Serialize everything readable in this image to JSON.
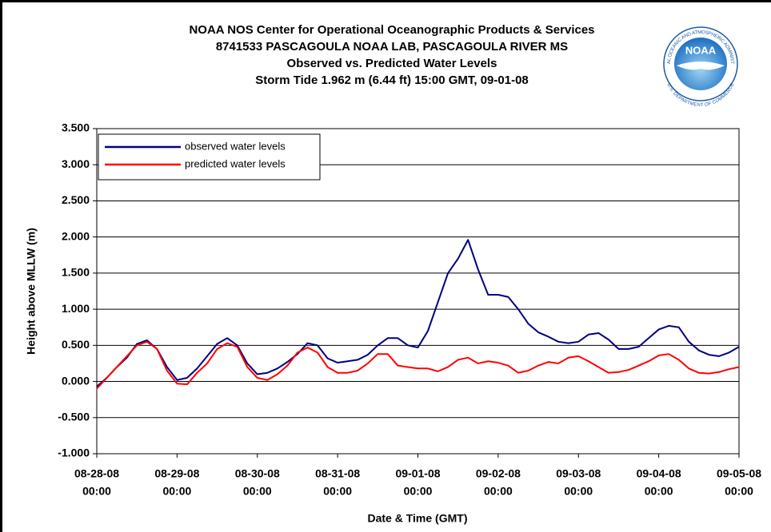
{
  "chart_data": {
    "type": "line",
    "title": [
      "NOAA NOS Center for Operational Oceanographic Products & Services",
      "8741533  PASCAGOULA NOAA LAB, PASCAGOULA RIVER MS",
      "Observed vs. Predicted Water Levels",
      "Storm Tide 1.962 m (6.44 ft) 15:00 GMT, 09-01-08"
    ],
    "logo": {
      "text": "NOAA",
      "ring_top": "NATIONAL OCEANIC AND ATMOSPHERIC ADMINISTRATION",
      "ring_bottom": "U.S. DEPARTMENT OF COMMERCE"
    },
    "x_label": "Date & Time (GMT)",
    "y_label": "Height above MLLW (m)",
    "x": [
      "08-28-08 00:00",
      "08-28-08 03:00",
      "08-28-08 06:00",
      "08-28-08 09:00",
      "08-28-08 12:00",
      "08-28-08 15:00",
      "08-28-08 18:00",
      "08-28-08 21:00",
      "08-29-08 00:00",
      "08-29-08 03:00",
      "08-29-08 06:00",
      "08-29-08 09:00",
      "08-29-08 12:00",
      "08-29-08 15:00",
      "08-29-08 18:00",
      "08-29-08 21:00",
      "08-30-08 00:00",
      "08-30-08 03:00",
      "08-30-08 06:00",
      "08-30-08 09:00",
      "08-30-08 12:00",
      "08-30-08 15:00",
      "08-30-08 18:00",
      "08-30-08 21:00",
      "08-31-08 00:00",
      "08-31-08 03:00",
      "08-31-08 06:00",
      "08-31-08 09:00",
      "08-31-08 12:00",
      "08-31-08 15:00",
      "08-31-08 18:00",
      "08-31-08 21:00",
      "09-01-08 00:00",
      "09-01-08 03:00",
      "09-01-08 06:00",
      "09-01-08 09:00",
      "09-01-08 12:00",
      "09-01-08 15:00",
      "09-01-08 18:00",
      "09-01-08 21:00",
      "09-02-08 00:00",
      "09-02-08 03:00",
      "09-02-08 06:00",
      "09-02-08 09:00",
      "09-02-08 12:00",
      "09-02-08 15:00",
      "09-02-08 18:00",
      "09-02-08 21:00",
      "09-03-08 00:00",
      "09-03-08 03:00",
      "09-03-08 06:00",
      "09-03-08 09:00",
      "09-03-08 12:00",
      "09-03-08 15:00",
      "09-03-08 18:00",
      "09-03-08 21:00",
      "09-04-08 00:00",
      "09-04-08 03:00",
      "09-04-08 06:00",
      "09-04-08 09:00",
      "09-04-08 12:00",
      "09-04-08 15:00",
      "09-04-08 18:00",
      "09-04-08 21:00",
      "09-05-08 00:00"
    ],
    "series": [
      {
        "name": "observed water levels",
        "color": "#000080",
        "values": [
          -0.07,
          0.05,
          0.2,
          0.33,
          0.52,
          0.57,
          0.45,
          0.2,
          0.02,
          0.05,
          0.18,
          0.35,
          0.52,
          0.6,
          0.5,
          0.25,
          0.1,
          0.12,
          0.18,
          0.27,
          0.38,
          0.53,
          0.5,
          0.32,
          0.26,
          0.28,
          0.3,
          0.37,
          0.5,
          0.6,
          0.6,
          0.5,
          0.47,
          0.7,
          1.1,
          1.5,
          1.7,
          1.96,
          1.55,
          1.2,
          1.2,
          1.17,
          1.0,
          0.8,
          0.68,
          0.62,
          0.55,
          0.53,
          0.55,
          0.65,
          0.67,
          0.58,
          0.45,
          0.45,
          0.48,
          0.6,
          0.72,
          0.77,
          0.75,
          0.55,
          0.43,
          0.37,
          0.35,
          0.4,
          0.48
        ]
      },
      {
        "name": "predicted water levels",
        "color": "#ff0000",
        "values": [
          -0.1,
          0.05,
          0.2,
          0.35,
          0.5,
          0.55,
          0.45,
          0.15,
          -0.03,
          -0.04,
          0.12,
          0.25,
          0.45,
          0.53,
          0.48,
          0.2,
          0.05,
          0.02,
          0.1,
          0.22,
          0.4,
          0.47,
          0.4,
          0.2,
          0.12,
          0.12,
          0.15,
          0.25,
          0.38,
          0.38,
          0.22,
          0.2,
          0.18,
          0.18,
          0.14,
          0.2,
          0.3,
          0.33,
          0.25,
          0.28,
          0.26,
          0.22,
          0.12,
          0.15,
          0.22,
          0.27,
          0.25,
          0.33,
          0.35,
          0.28,
          0.2,
          0.12,
          0.13,
          0.16,
          0.22,
          0.28,
          0.36,
          0.38,
          0.3,
          0.18,
          0.12,
          0.11,
          0.13,
          0.17,
          0.2
        ]
      }
    ],
    "xlim": [
      "08-28-08 00:00",
      "09-05-08 00:00"
    ],
    "xticks": [
      {
        "value": "08-28-08 00:00",
        "label": [
          "08-28-08",
          "00:00"
        ]
      },
      {
        "value": "08-29-08 00:00",
        "label": [
          "08-29-08",
          "00:00"
        ]
      },
      {
        "value": "08-30-08 00:00",
        "label": [
          "08-30-08",
          "00:00"
        ]
      },
      {
        "value": "08-31-08 00:00",
        "label": [
          "08-31-08",
          "00:00"
        ]
      },
      {
        "value": "09-01-08 00:00",
        "label": [
          "09-01-08",
          "00:00"
        ]
      },
      {
        "value": "09-02-08 00:00",
        "label": [
          "09-02-08",
          "00:00"
        ]
      },
      {
        "value": "09-03-08 00:00",
        "label": [
          "09-03-08",
          "00:00"
        ]
      },
      {
        "value": "09-04-08 00:00",
        "label": [
          "09-04-08",
          "00:00"
        ]
      },
      {
        "value": "09-05-08 00:00",
        "label": [
          "09-05-08",
          "00:00"
        ]
      }
    ],
    "ylim": [
      -1.0,
      3.5
    ],
    "yticks": [
      {
        "value": -1.0,
        "label": "-1.000"
      },
      {
        "value": -0.5,
        "label": "-0.500"
      },
      {
        "value": 0,
        "label": "0.000"
      },
      {
        "value": 0.5,
        "label": "0.500"
      },
      {
        "value": 1.0,
        "label": "1.000"
      },
      {
        "value": 1.5,
        "label": "1.500"
      },
      {
        "value": 2.0,
        "label": "2.000"
      },
      {
        "value": 2.5,
        "label": "2.500"
      },
      {
        "value": 3.0,
        "label": "3.000"
      },
      {
        "value": 3.5,
        "label": "3.500"
      }
    ],
    "grid": true,
    "legend": "upper left"
  }
}
